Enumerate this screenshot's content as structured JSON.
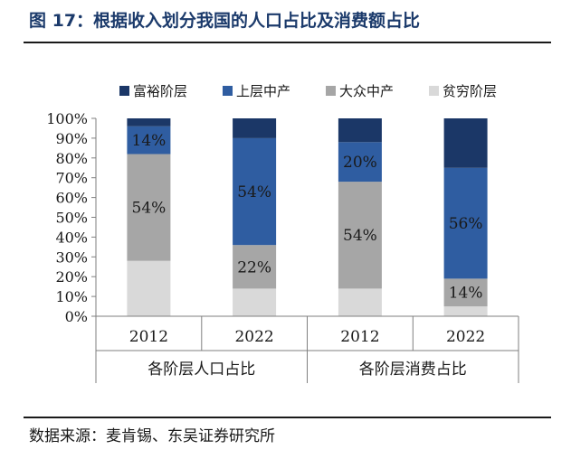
{
  "figure": {
    "title": "图 17：根据收入划分我国的人口占比及消费额占比",
    "source": "数据来源：麦肯锡、东吴证券研究所"
  },
  "colors": {
    "rich": "#1b3767",
    "upper_middle": "#2f5da1",
    "mass_middle": "#a6a6a6",
    "poor": "#d9d9d9",
    "title": "#1b3a6b"
  },
  "chart_data": {
    "type": "bar",
    "stacked": true,
    "percent": true,
    "categories": [
      "2012",
      "2022",
      "2012",
      "2022"
    ],
    "groups": [
      {
        "label": "各阶层人口占比",
        "categories": [
          0,
          1
        ]
      },
      {
        "label": "各阶层消费占比",
        "categories": [
          2,
          3
        ]
      }
    ],
    "series": [
      {
        "name": "贫穷阶层",
        "color": "#d9d9d9",
        "values": [
          28,
          14,
          14,
          5
        ]
      },
      {
        "name": "大众中产",
        "color": "#a6a6a6",
        "values": [
          54,
          22,
          54,
          14
        ]
      },
      {
        "name": "上层中产",
        "color": "#2f5da1",
        "values": [
          14,
          54,
          20,
          56
        ]
      },
      {
        "name": "富裕阶层",
        "color": "#1b3767",
        "values": [
          4,
          10,
          12,
          25
        ]
      }
    ],
    "data_labels": [
      {
        "category": 0,
        "series": "大众中产",
        "text": "54%"
      },
      {
        "category": 0,
        "series": "上层中产",
        "text": "14%"
      },
      {
        "category": 1,
        "series": "大众中产",
        "text": "22%"
      },
      {
        "category": 1,
        "series": "上层中产",
        "text": "54%"
      },
      {
        "category": 2,
        "series": "大众中产",
        "text": "54%"
      },
      {
        "category": 2,
        "series": "上层中产",
        "text": "20%"
      },
      {
        "category": 3,
        "series": "大众中产",
        "text": "14%"
      },
      {
        "category": 3,
        "series": "上层中产",
        "text": "56%"
      }
    ],
    "legend_order": [
      "富裕阶层",
      "上层中产",
      "大众中产",
      "贫穷阶层"
    ],
    "legend_position": "top",
    "ylim": [
      0,
      100
    ],
    "yticks": [
      "0%",
      "10%",
      "20%",
      "30%",
      "40%",
      "50%",
      "60%",
      "70%",
      "80%",
      "90%",
      "100%"
    ],
    "grid": false
  }
}
